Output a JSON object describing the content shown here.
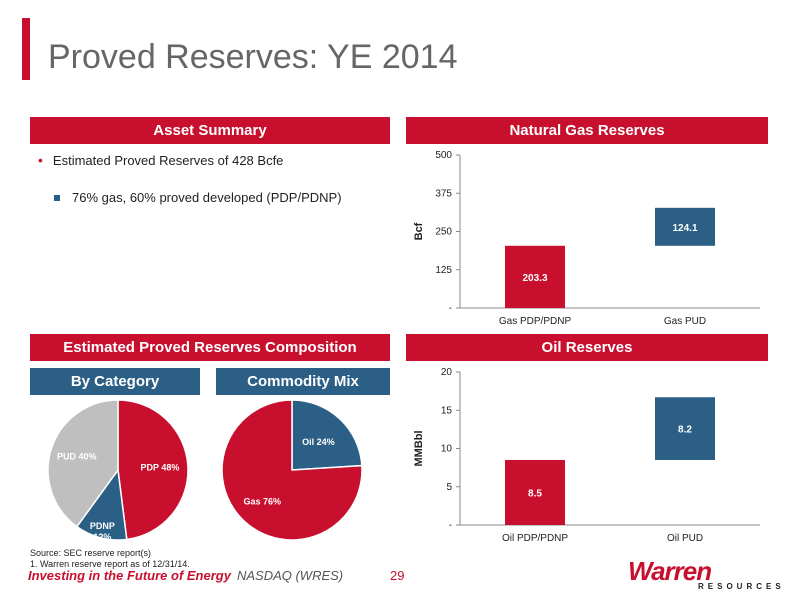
{
  "title": "Proved Reserves: YE 2014",
  "asset_summary": {
    "heading": "Asset Summary",
    "bullet1": "Estimated Proved Reserves of 428 Bcfe",
    "bullet2": "76% gas, 60% proved developed (PDP/PDNP)"
  },
  "composition": {
    "heading": "Estimated Proved Reserves Composition",
    "by_category_label": "By Category",
    "commodity_mix_label": "Commodity Mix"
  },
  "natural_gas_heading": "Natural Gas Reserves",
  "oil_heading": "Oil Reserves",
  "colors": {
    "red": "#c8102e",
    "blue": "#2b5f86",
    "gray": "#bfbfbf"
  },
  "chart_data": [
    {
      "type": "bar",
      "title": "Natural Gas Reserves",
      "ylabel": "Bcf",
      "categories": [
        "Gas PDP/PDNP",
        "Gas PUD"
      ],
      "series": [
        {
          "base": 0,
          "value": 203.3,
          "label": "203.3",
          "color": "#c8102e"
        },
        {
          "base": 203.3,
          "value": 124.1,
          "label": "124.1",
          "color": "#2b5f86"
        }
      ],
      "ylim": [
        0,
        500
      ],
      "yticks": [
        0,
        125,
        250,
        375,
        500
      ],
      "yticklabels": [
        "-",
        "125",
        "250",
        "375",
        "500"
      ]
    },
    {
      "type": "bar",
      "title": "Oil Reserves",
      "ylabel": "MMBbl",
      "categories": [
        "Oil PDP/PDNP",
        "Oil PUD"
      ],
      "series": [
        {
          "base": 0,
          "value": 8.5,
          "label": "8.5",
          "color": "#c8102e"
        },
        {
          "base": 8.5,
          "value": 8.2,
          "label": "8.2",
          "color": "#2b5f86"
        }
      ],
      "ylim": [
        0,
        20
      ],
      "yticks": [
        0,
        5,
        10,
        15,
        20
      ],
      "yticklabels": [
        "-",
        "5",
        "10",
        "15",
        "20"
      ]
    },
    {
      "type": "pie",
      "title": "By Category",
      "slices": [
        {
          "label": "PDP 48%",
          "value": 48,
          "color": "#c8102e"
        },
        {
          "label": "PDNP 12%",
          "line1": "PDNP",
          "line2": "12%",
          "value": 12,
          "color": "#2b5f86"
        },
        {
          "label": "PUD 40%",
          "value": 40,
          "color": "#bfbfbf"
        }
      ]
    },
    {
      "type": "pie",
      "title": "Commodity Mix",
      "slices": [
        {
          "label": "Oil 24%",
          "value": 24,
          "color": "#2b5f86"
        },
        {
          "label": "Gas 76%",
          "value": 76,
          "color": "#c8102e"
        }
      ]
    }
  ],
  "source_line1": "Source: SEC reserve report(s)",
  "source_line2": "1. Warren reserve report as of 12/31/14.",
  "footer": {
    "tagline": "Investing in the Future of Energy",
    "ticker": "NASDAQ (WRES)",
    "page": "29",
    "logo_word": "Warren",
    "logo_sub": "RESOURCES"
  }
}
